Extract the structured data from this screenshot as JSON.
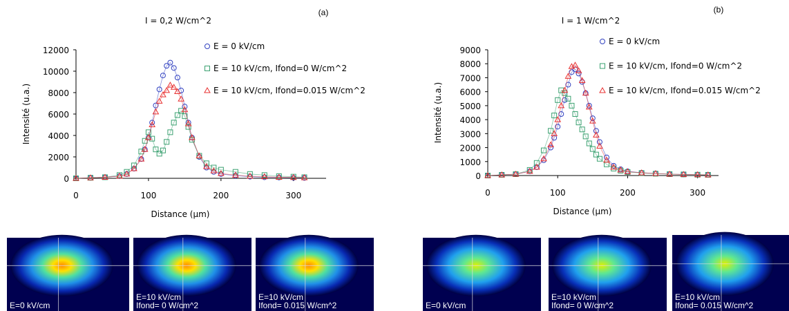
{
  "chart_data": [
    {
      "type": "line",
      "title": "I = 0,2 W/cm^2",
      "label": "(a)",
      "x_label": "Distance (μm)",
      "y_label": "Intensité (u.a.)",
      "x": [
        0,
        20,
        40,
        60,
        70,
        80,
        90,
        95,
        100,
        105,
        110,
        115,
        120,
        125,
        130,
        135,
        140,
        145,
        150,
        155,
        160,
        170,
        180,
        190,
        200,
        220,
        240,
        260,
        280,
        300,
        315
      ],
      "series": [
        {
          "name": "E = 0 kV/cm",
          "color": "#3040c0",
          "marker": "circle",
          "values": [
            0,
            50,
            100,
            200,
            400,
            900,
            1800,
            2700,
            3800,
            5200,
            6800,
            8300,
            9600,
            10500,
            10800,
            10300,
            9400,
            8200,
            6700,
            5200,
            3800,
            2000,
            1000,
            600,
            400,
            250,
            150,
            100,
            80,
            50,
            40
          ]
        },
        {
          "name": "E = 10 kV/cm, Ifond=0 W/cm^2",
          "color": "#3aa070",
          "marker": "square",
          "values": [
            0,
            50,
            100,
            300,
            600,
            1200,
            2500,
            3500,
            4300,
            3700,
            2700,
            2300,
            2600,
            3400,
            4300,
            5200,
            5900,
            6300,
            5800,
            4800,
            3600,
            2100,
            1400,
            1000,
            800,
            600,
            400,
            300,
            200,
            150,
            100
          ]
        },
        {
          "name": "E = 10 kV/cm, Ifond=0.015 W/cm^2",
          "color": "#e83030",
          "marker": "triangle",
          "values": [
            0,
            50,
            100,
            200,
            400,
            900,
            1800,
            2700,
            3800,
            5000,
            6200,
            7200,
            7800,
            8200,
            8700,
            8500,
            8100,
            7400,
            6400,
            5100,
            3800,
            2100,
            1100,
            700,
            450,
            300,
            200,
            150,
            100,
            80,
            60
          ]
        }
      ],
      "xlim": [
        0,
        345
      ],
      "xticks": [
        0,
        100,
        200,
        300
      ],
      "ylim": [
        0,
        12000
      ],
      "yticks": [
        0,
        2000,
        4000,
        6000,
        8000,
        10000,
        12000
      ],
      "images": [
        "E=0 kV/cm",
        "E=10 kV/cm\nIfond= 0 W/cm^2",
        "E=10 kV/cm\nIfond= 0.015 W/cm^2"
      ]
    },
    {
      "type": "line",
      "title": "I = 1 W/cm^2",
      "label": "(b)",
      "x_label": "Distance (μm)",
      "y_label": "Intensité (u.a.)",
      "x": [
        0,
        20,
        40,
        60,
        70,
        80,
        90,
        95,
        100,
        105,
        110,
        115,
        120,
        125,
        130,
        135,
        140,
        145,
        150,
        155,
        160,
        170,
        180,
        190,
        200,
        220,
        240,
        260,
        280,
        300,
        315
      ],
      "series": [
        {
          "name": "E = 0 kV/cm",
          "color": "#3040c0",
          "marker": "circle",
          "values": [
            0,
            50,
            100,
            300,
            600,
            1100,
            2000,
            2700,
            3500,
            4400,
            5400,
            6500,
            7400,
            7600,
            7300,
            6700,
            5900,
            5000,
            4100,
            3200,
            2400,
            1300,
            700,
            450,
            300,
            200,
            150,
            100,
            80,
            60,
            50
          ]
        },
        {
          "name": "E = 10 kV/cm, Ifond=0 W/cm^2",
          "color": "#3aa070",
          "marker": "square",
          "values": [
            0,
            50,
            100,
            400,
            900,
            1800,
            3200,
            4300,
            5400,
            6100,
            5900,
            5500,
            5000,
            4400,
            3800,
            3300,
            2800,
            2300,
            1900,
            1500,
            1200,
            800,
            500,
            350,
            250,
            180,
            130,
            100,
            80,
            60,
            50
          ]
        },
        {
          "name": "E = 10 kV/cm, Ifond=0.015 W/cm^2",
          "color": "#e83030",
          "marker": "triangle",
          "values": [
            0,
            50,
            100,
            300,
            600,
            1200,
            2200,
            3000,
            4000,
            5000,
            6100,
            7100,
            7800,
            7900,
            7500,
            6800,
            5900,
            4900,
            3900,
            2900,
            2100,
            1100,
            600,
            400,
            280,
            200,
            150,
            100,
            80,
            60,
            50
          ]
        }
      ],
      "xlim": [
        0,
        330
      ],
      "xticks": [
        0,
        100,
        200,
        300
      ],
      "ylim": [
        0,
        9000
      ],
      "yticks": [
        0,
        1000,
        2000,
        3000,
        4000,
        5000,
        6000,
        7000,
        8000,
        9000
      ],
      "images": [
        "E=0 kV/cm",
        "E=10 kV/cm\nIfond= 0 W/cm^2",
        "E=10 kV/cm\nIfond= 0.015 W/cm^2"
      ]
    }
  ]
}
